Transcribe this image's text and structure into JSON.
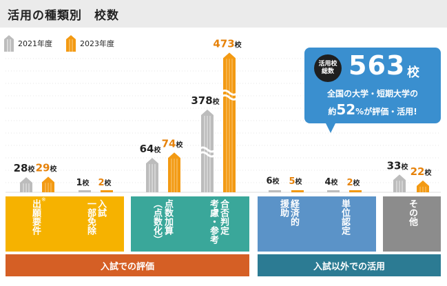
{
  "title": "活用の種類別　校数",
  "legend": [
    {
      "label": "2021年度",
      "color": "#bcbcbc"
    },
    {
      "label": "2023年度",
      "color": "#f39a13"
    }
  ],
  "colors": {
    "series_2021": "#bcbcbc",
    "series_2023": "#f39a13",
    "label_2021": "#222222",
    "label_2023": "#e6820a",
    "cat_yellow": "#f6b200",
    "cat_teal": "#3aa79a",
    "cat_blue": "#5b93c8",
    "cat_gray": "#8c8c8c",
    "group_orange": "#d55f25",
    "group_teal": "#2c7b93",
    "callout_blue": "#3a8fcf"
  },
  "chart_data": {
    "type": "bar",
    "title": "活用の種類別　校数",
    "unit": "校",
    "categories": [
      "出願要件",
      "一部免除 入試",
      "点数加算（点数化）",
      "合否判定 考慮・参考",
      "援助 経済的",
      "単位認定",
      "その他"
    ],
    "series": [
      {
        "name": "2021年度",
        "values": [
          28,
          1,
          64,
          378,
          6,
          4,
          33
        ]
      },
      {
        "name": "2023年度",
        "values": [
          29,
          2,
          74,
          473,
          5,
          2,
          22
        ]
      }
    ],
    "value_labels": {
      "2021": [
        "28",
        "1",
        "64",
        "378",
        "6",
        "4",
        "33"
      ],
      "2023": [
        "29",
        "2",
        "74",
        "473",
        "5",
        "2",
        "22"
      ]
    },
    "axis_break": true
  },
  "callout": {
    "badge_line1": "活用校",
    "badge_line2": "総数",
    "total": "563",
    "total_unit": "校",
    "line1": "全国の大学・短期大学の",
    "line2_prefix": "約",
    "line2_pct": "52",
    "line2_suffix": "%が評価・活用!"
  },
  "categories": {
    "c1": {
      "text": "出願要件",
      "note": "※"
    },
    "c2": {
      "col1": "入試",
      "col2": "一部免除"
    },
    "c3": {
      "col1": "点数加算",
      "col2": "（点数化）"
    },
    "c4": {
      "col1": "合否判定",
      "col2": "考慮・参考"
    },
    "c5": {
      "col1": "経済的",
      "col2": "援助"
    },
    "c6": {
      "text": "単位認定"
    },
    "c7": {
      "text": "その他"
    }
  },
  "groups": {
    "left": "入試での評価",
    "right": "入試以外での活用"
  }
}
